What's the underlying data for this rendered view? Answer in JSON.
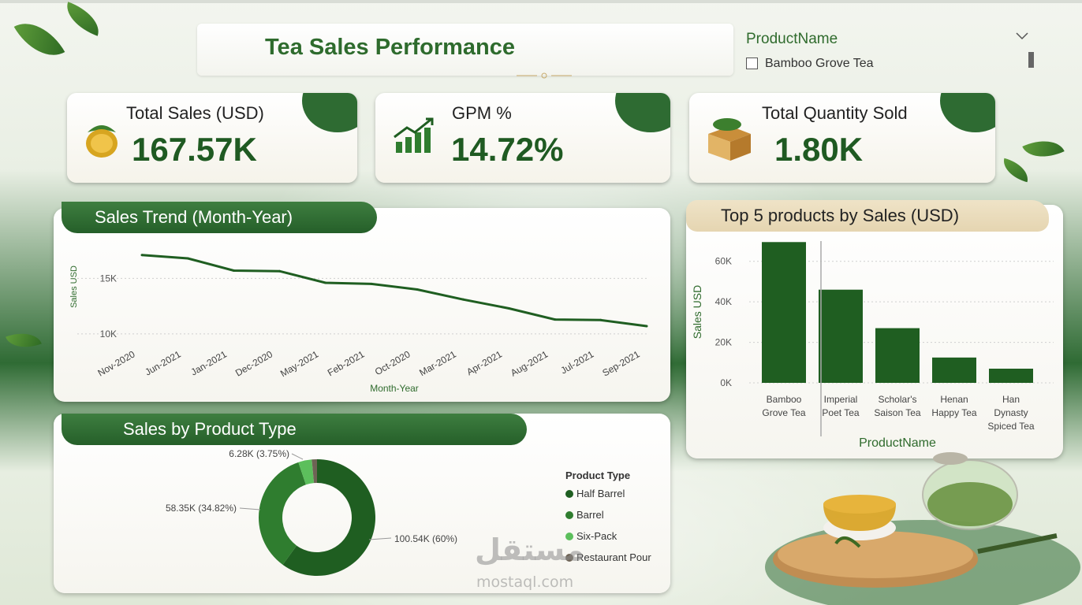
{
  "dashboard": {
    "title": "Tea Sales Performance"
  },
  "slicer": {
    "title": "ProductName",
    "items": [
      {
        "label": "Bamboo Grove Tea",
        "checked": false
      }
    ]
  },
  "kpis": [
    {
      "label": "Total Sales (USD)",
      "value": "167.57K",
      "icon": "coin-icon"
    },
    {
      "label": "GPM %",
      "value": "14.72%",
      "icon": "growth-chart-icon"
    },
    {
      "label": "Total Quantity Sold",
      "value": "1.80K",
      "icon": "tea-box-icon"
    }
  ],
  "colors": {
    "dark_green": "#1f5e21",
    "mid_green": "#2f7d2f",
    "light_green": "#5cbf5c",
    "gray_brown": "#6e6355",
    "line_green": "#1f5e21"
  },
  "chart_data": [
    {
      "type": "line",
      "title": "Sales Trend (Month-Year)",
      "xlabel": "Month-Year",
      "ylabel": "Sales USD",
      "categories": [
        "Nov-2020",
        "Jun-2021",
        "Jan-2021",
        "Dec-2020",
        "May-2021",
        "Feb-2021",
        "Oct-2020",
        "Mar-2021",
        "Apr-2021",
        "Aug-2021",
        "Jul-2021",
        "Sep-2021"
      ],
      "values": [
        17100,
        16800,
        15700,
        15650,
        14600,
        14500,
        14000,
        13100,
        12300,
        11300,
        11250,
        10700
      ],
      "yticks": [
        10000,
        15000
      ],
      "ytick_labels": [
        "10K",
        "15K"
      ],
      "ylim": [
        9000,
        18500
      ],
      "grid": true
    },
    {
      "type": "bar",
      "title": "Top 5 products by Sales (USD)",
      "xlabel": "ProductName",
      "ylabel": "Sales USD",
      "categories": [
        "Bamboo Grove Tea",
        "Imperial Poet Tea",
        "Scholar's Saison Tea",
        "Henan Happy Tea",
        "Han Dynasty Spiced Tea"
      ],
      "category_lines": [
        [
          "Bamboo",
          "Grove Tea"
        ],
        [
          "Imperial",
          "Poet Tea"
        ],
        [
          "Scholar's",
          "Saison Tea"
        ],
        [
          "Henan",
          "Happy Tea"
        ],
        [
          "Han",
          "Dynasty",
          "Spiced Tea"
        ]
      ],
      "values": [
        69500,
        46000,
        27000,
        12500,
        7000
      ],
      "yticks": [
        0,
        20000,
        40000,
        60000
      ],
      "ytick_labels": [
        "0K",
        "20K",
        "40K",
        "60K"
      ],
      "ylim": [
        0,
        70000
      ],
      "grid": true
    },
    {
      "type": "pie",
      "title": "Sales by Product Type",
      "legend_title": "Product Type",
      "legend_position": "right",
      "slices": [
        {
          "name": "Half Barrel",
          "value": 100.54,
          "percent": 60,
          "label": "100.54K (60%)",
          "color": "#1f5e21"
        },
        {
          "name": "Barrel",
          "value": 58.35,
          "percent": 34.82,
          "label": "58.35K (34.82%)",
          "color": "#2f7d2f"
        },
        {
          "name": "Six-Pack",
          "value": 6.28,
          "percent": 3.75,
          "label": "6.28K (3.75%)",
          "color": "#5cbf5c"
        },
        {
          "name": "Restaurant Pour",
          "value": 2.4,
          "percent": 1.43,
          "label": "",
          "color": "#6e6355"
        }
      ]
    }
  ],
  "watermark": {
    "text": "مستقل",
    "sub": "mostaql.com"
  }
}
